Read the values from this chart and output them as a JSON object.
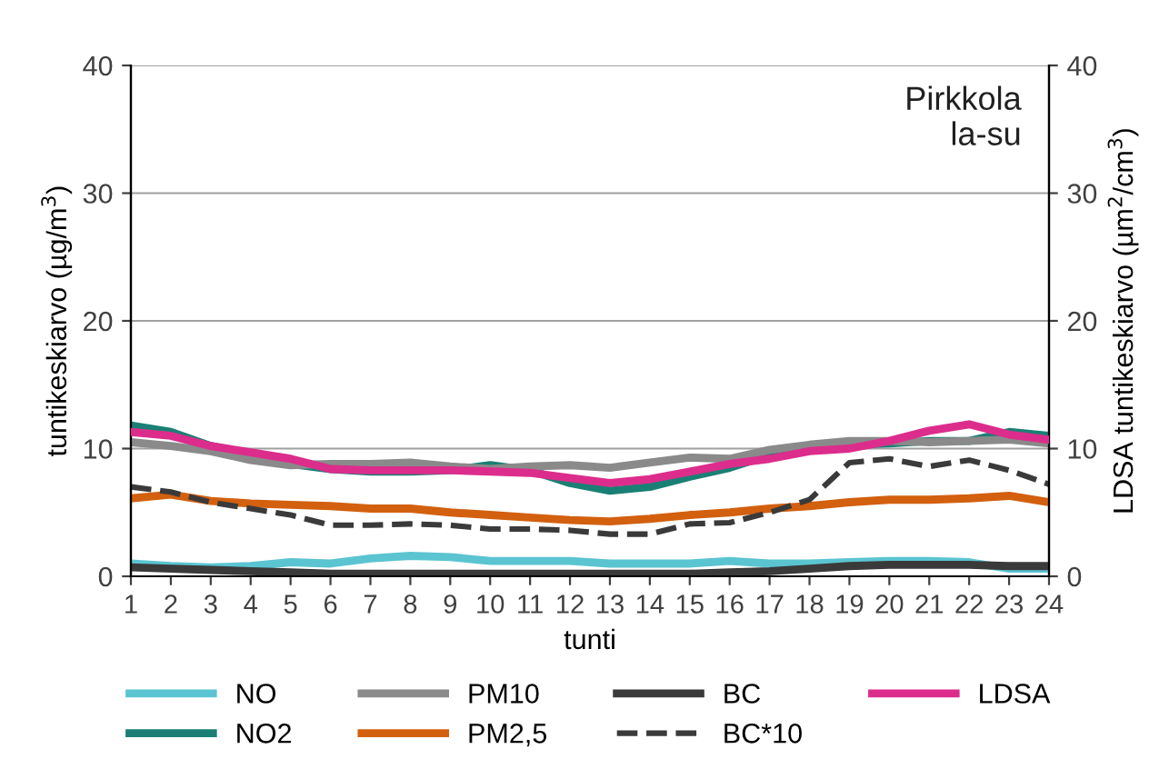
{
  "chart_data": {
    "type": "line",
    "xlabel": "tunti",
    "ylabel": "tuntikeskiarvo (µg/m$^{3}$)",
    "y2label": "LDSA tuntikeskiarvo (µm$^{2}$/cm$^{3}$)",
    "annotations": [
      "Pirkkola\nla-su"
    ],
    "categories": [
      "1",
      "2",
      "3",
      "4",
      "5",
      "6",
      "7",
      "8",
      "9",
      "10",
      "11",
      "12",
      "13",
      "14",
      "15",
      "16",
      "17",
      "18",
      "19",
      "20",
      "21",
      "22",
      "23",
      "24"
    ],
    "ylim": [
      0,
      40
    ],
    "yticks": [
      0,
      10,
      20,
      30,
      40
    ],
    "y2lim": [
      0,
      40
    ],
    "y2ticks": [
      0,
      10,
      20,
      30,
      40
    ],
    "grid": "y",
    "legend": "bottom",
    "line_style": "solid",
    "series": [
      {
        "name": "NO",
        "color": "#5bc4d1",
        "values": [
          1.0,
          0.8,
          0.7,
          0.8,
          1.1,
          1.0,
          1.4,
          1.6,
          1.5,
          1.2,
          1.2,
          1.2,
          1.0,
          1.0,
          1.0,
          1.2,
          1.0,
          1.0,
          1.1,
          1.2,
          1.2,
          1.1,
          0.6,
          0.6
        ]
      },
      {
        "name": "NO2",
        "color": "#1a8075",
        "values": [
          11.8,
          11.3,
          10.2,
          9.6,
          8.8,
          8.4,
          8.2,
          8.2,
          8.3,
          8.7,
          8.3,
          7.3,
          6.7,
          7.0,
          7.8,
          8.5,
          9.5,
          10.0,
          10.3,
          10.4,
          10.6,
          10.6,
          11.3,
          11.0
        ]
      },
      {
        "name": "PM10",
        "color": "#8a8a8a",
        "values": [
          10.5,
          10.2,
          9.8,
          9.1,
          8.7,
          8.8,
          8.8,
          8.9,
          8.6,
          8.4,
          8.6,
          8.7,
          8.5,
          8.9,
          9.3,
          9.2,
          9.9,
          10.3,
          10.6,
          10.6,
          10.5,
          10.6,
          10.7,
          10.4
        ]
      },
      {
        "name": "PM2,5",
        "color": "#d2600f",
        "values": [
          6.1,
          6.4,
          5.9,
          5.7,
          5.6,
          5.5,
          5.3,
          5.3,
          5.0,
          4.8,
          4.6,
          4.4,
          4.3,
          4.5,
          4.8,
          5.0,
          5.3,
          5.5,
          5.8,
          6.0,
          6.0,
          6.1,
          6.3,
          5.8
        ]
      },
      {
        "name": "BC",
        "color": "#3a3a3a",
        "values": [
          0.7,
          0.6,
          0.5,
          0.4,
          0.3,
          0.2,
          0.2,
          0.2,
          0.2,
          0.2,
          0.2,
          0.2,
          0.2,
          0.2,
          0.2,
          0.3,
          0.4,
          0.6,
          0.8,
          0.9,
          0.9,
          0.9,
          0.8,
          0.8
        ]
      },
      {
        "name": "BC*10",
        "color": "#3a3a3a",
        "line_style": "dashed",
        "values": [
          7.0,
          6.6,
          5.8,
          5.3,
          4.8,
          4.0,
          4.0,
          4.1,
          4.0,
          3.7,
          3.7,
          3.6,
          3.3,
          3.3,
          4.1,
          4.2,
          5.0,
          6.0,
          8.9,
          9.2,
          8.6,
          9.1,
          8.3,
          7.2
        ]
      },
      {
        "name": "LDSA",
        "color": "#dc2d8c",
        "axis": "y2",
        "values": [
          11.3,
          11.0,
          10.2,
          9.7,
          9.2,
          8.4,
          8.3,
          8.3,
          8.3,
          8.2,
          8.1,
          7.7,
          7.3,
          7.6,
          8.2,
          8.8,
          9.2,
          9.8,
          10.0,
          10.6,
          11.4,
          11.9,
          11.1,
          10.7
        ]
      }
    ]
  }
}
